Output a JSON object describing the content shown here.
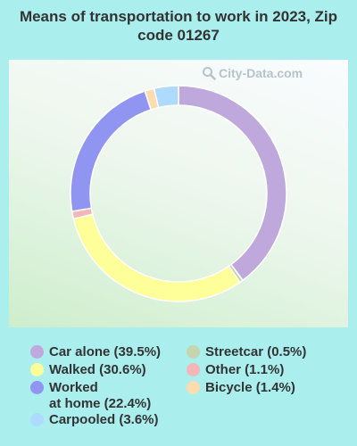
{
  "chart_data": {
    "type": "pie",
    "title": "Means of transportation to work in 2023, Zip code 01267",
    "slices": [
      {
        "label": "Car alone",
        "value": 39.5,
        "display": "Car alone (39.5%)",
        "color": "#bfa8db"
      },
      {
        "label": "Streetcar",
        "value": 0.5,
        "display": "Streetcar (0.5%)",
        "color": "#c5d5b0"
      },
      {
        "label": "Walked",
        "value": 30.6,
        "display": "Walked (30.6%)",
        "color": "#ffff99"
      },
      {
        "label": "Other",
        "value": 1.1,
        "display": "Other (1.1%)",
        "color": "#f4b6b6"
      },
      {
        "label": "Worked at home",
        "value": 22.4,
        "display": "Worked\nat home (22.4%)",
        "color": "#9195f2"
      },
      {
        "label": "Bicycle",
        "value": 1.4,
        "display": "Bicycle (1.4%)",
        "color": "#fddcae"
      },
      {
        "label": "Carpooled",
        "value": 3.6,
        "display": "Carpooled (3.6%)",
        "color": "#addafd"
      }
    ],
    "legend_placement": "bottom"
  },
  "watermark": {
    "text": "City-Data.com",
    "icon": "magnifier-icon"
  }
}
